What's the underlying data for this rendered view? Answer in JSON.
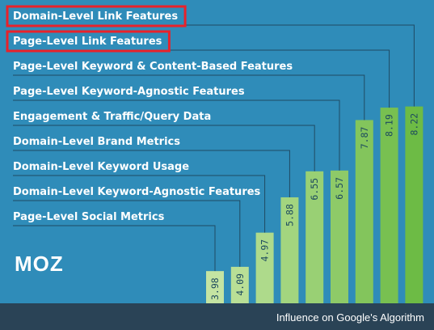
{
  "chart_data": {
    "type": "bar",
    "title": "",
    "xlabel": "Influence on Google's Algorithm",
    "ylabel": "",
    "categories": [
      "Page-Level Social Metrics",
      "Domain-Level Keyword-Agnostic Features",
      "Domain-Level Keyword Usage",
      "Domain-Level Brand Metrics",
      "Engagement & Traffic/Query Data",
      "Page-Level Keyword-Agnostic Features",
      "Page-Level Keyword & Content-Based Features",
      "Page-Level Link Features",
      "Domain-Level Link Features"
    ],
    "values": [
      3.98,
      4.09,
      4.97,
      5.88,
      6.55,
      6.57,
      7.87,
      8.19,
      8.22
    ],
    "value_labels": [
      "3.98",
      "4.09",
      "4.97",
      "5.88",
      "6.55",
      "6.57",
      "7.87",
      "8.19",
      "8.22"
    ],
    "highlighted": [
      "Domain-Level Link Features",
      "Page-Level Link Features"
    ],
    "grid": false,
    "legend": "none"
  },
  "brand": {
    "logo_text": "MOZ"
  },
  "colors": {
    "background": "#2f8cb9",
    "footer": "#2a4356",
    "highlight_box": "#e8222a",
    "bar_light": "#c4e4a2",
    "bar_dark": "#6dbb45",
    "leader_line": "#1f4a63"
  }
}
